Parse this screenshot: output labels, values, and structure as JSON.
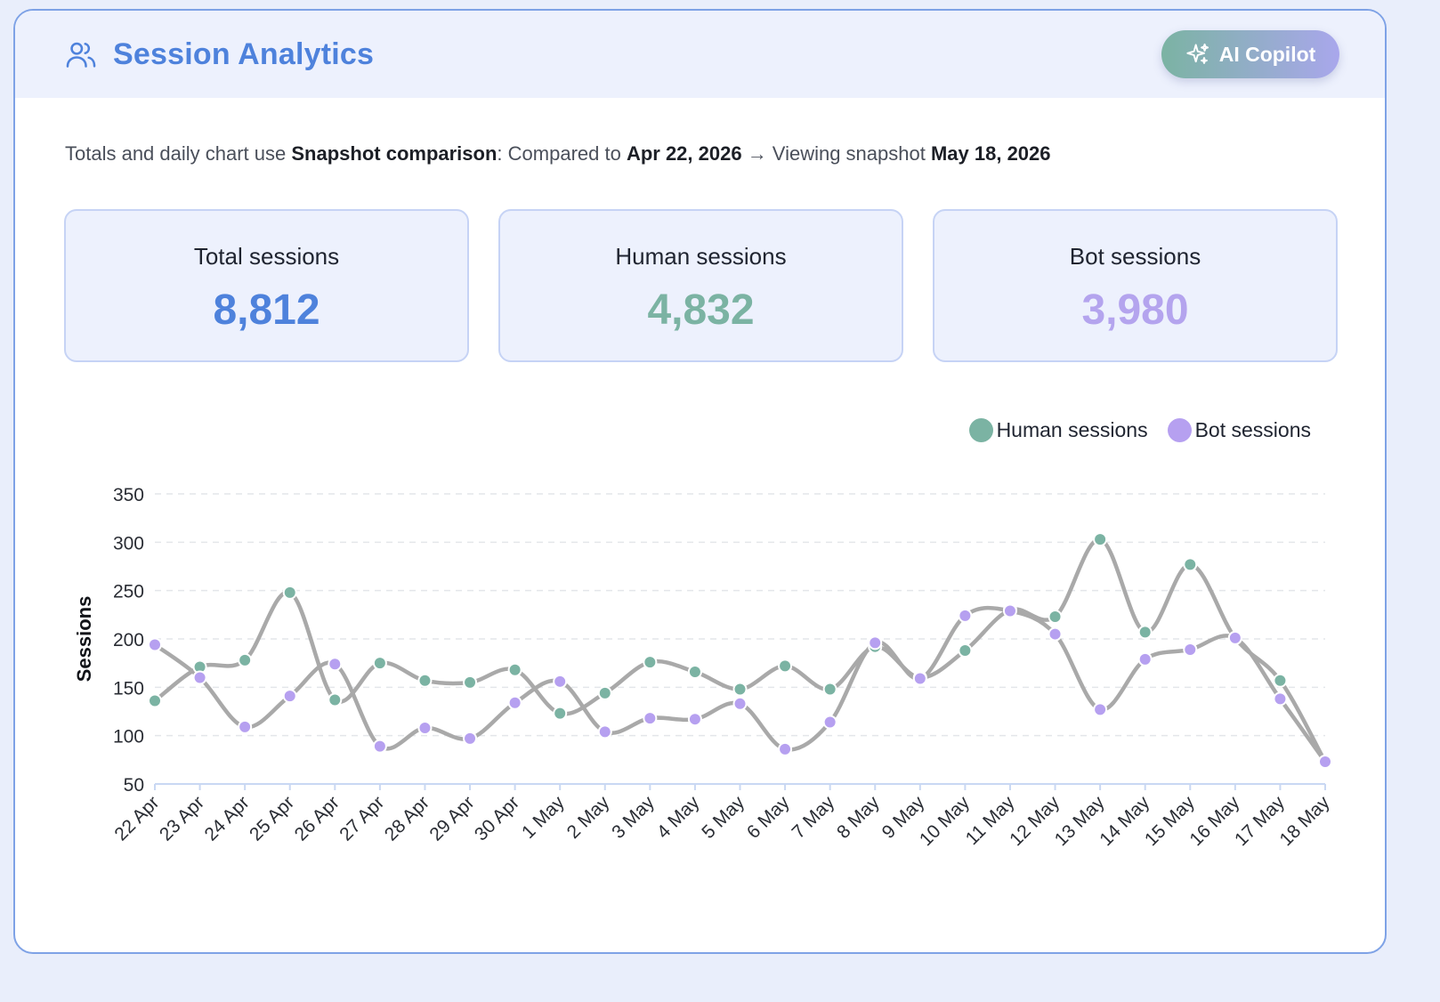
{
  "header": {
    "title": "Session Analytics",
    "copilot_label": "AI Copilot",
    "users_icon": "users-icon",
    "sparkle_icon": "sparkle-icon"
  },
  "subtitle": {
    "prefix": "Totals and daily chart use ",
    "mode": "Snapshot comparison",
    "compared_text": ": Compared to ",
    "compared_date": "Apr 22, 2026",
    "arrow": " → Viewing snapshot ",
    "viewing_date": "May 18, 2026"
  },
  "stats": [
    {
      "label": "Total sessions",
      "value": "8,812",
      "color": "#4e82dc"
    },
    {
      "label": "Human sessions",
      "value": "4,832",
      "color": "#7bb3a3"
    },
    {
      "label": "Bot sessions",
      "value": "3,980",
      "color": "#b4a4ee"
    }
  ],
  "colors": {
    "human": "#7bb3a3",
    "bot": "#b6a0f0",
    "line": "#a9a9a9",
    "accent": "#4e82dc"
  },
  "chart_data": {
    "type": "line",
    "ylabel": "Sessions",
    "xlabel": "",
    "ylim": [
      50,
      350
    ],
    "yticks": [
      50,
      100,
      150,
      200,
      250,
      300,
      350
    ],
    "grid": true,
    "legend_position": "top-right",
    "categories": [
      "22 Apr",
      "23 Apr",
      "24 Apr",
      "25 Apr",
      "26 Apr",
      "27 Apr",
      "28 Apr",
      "29 Apr",
      "30 Apr",
      "1 May",
      "2 May",
      "3 May",
      "4 May",
      "5 May",
      "6 May",
      "7 May",
      "8 May",
      "9 May",
      "10 May",
      "11 May",
      "12 May",
      "13 May",
      "14 May",
      "15 May",
      "16 May",
      "17 May",
      "18 May"
    ],
    "series": [
      {
        "name": "Human sessions",
        "values": [
          136,
          171,
          178,
          248,
          137,
          175,
          157,
          155,
          168,
          123,
          144,
          176,
          166,
          148,
          172,
          148,
          192,
          160,
          188,
          230,
          223,
          303,
          207,
          277,
          201,
          157,
          73
        ]
      },
      {
        "name": "Bot sessions",
        "values": [
          194,
          160,
          109,
          141,
          174,
          89,
          108,
          97,
          134,
          156,
          104,
          118,
          117,
          133,
          86,
          114,
          196,
          159,
          224,
          229,
          205,
          127,
          179,
          189,
          201,
          138,
          73
        ]
      }
    ]
  }
}
